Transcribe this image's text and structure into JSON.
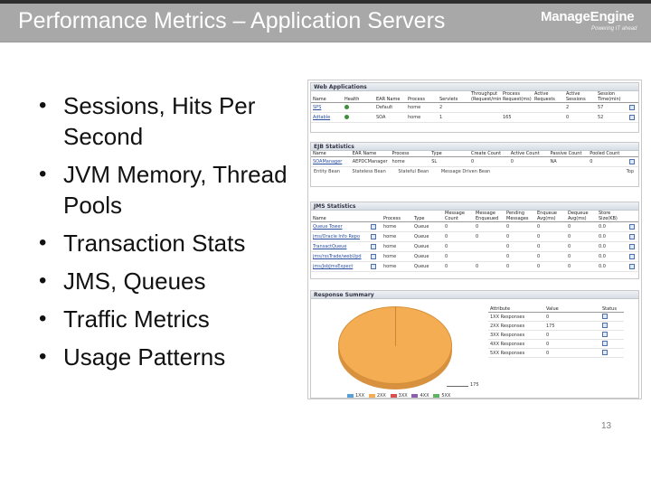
{
  "header": {
    "title": "Performance Metrics – Application Servers",
    "logo_name": "ManageEngine",
    "logo_tagline": "Powering IT ahead"
  },
  "bullets": [
    "Sessions, Hits Per Second",
    "JVM Memory, Thread Pools",
    "Transaction Stats",
    "JMS, Queues",
    "Traffic Metrics",
    "Usage Patterns"
  ],
  "screenshot": {
    "web_apps": {
      "title": "Web Applications",
      "headers": [
        "Name",
        "Health",
        "EAR Name",
        "Process",
        "Servlets",
        "Throughput (Request/min)",
        "Process Request(ms)",
        "Active Requests",
        "Active Sessions",
        "Session Time(min)",
        ""
      ],
      "rows": [
        [
          "SPS",
          "",
          "Default",
          "home",
          "2",
          "",
          "",
          "",
          "2",
          "57",
          ""
        ],
        [
          "Adtable",
          "",
          "SOA",
          "home",
          "1",
          "",
          "165",
          "",
          "0",
          "52",
          ""
        ]
      ]
    },
    "ejb": {
      "title": "EJB Statistics",
      "headers": [
        "Name",
        "EAR Name",
        "Process",
        "Type",
        "Create Count",
        "Active Count",
        "Passive Count",
        "Pooled Count",
        ""
      ],
      "rows": [
        [
          "SOAManager",
          "AEPDCManager",
          "home",
          "SL",
          "0",
          "0",
          "NA",
          "0",
          ""
        ]
      ],
      "legend": [
        "Entity Bean",
        "Stateless Bean",
        "Stateful Bean",
        "Message Driven Bean"
      ],
      "footer": "Top"
    },
    "jms": {
      "title": "JMS Statistics",
      "headers": [
        "Name",
        "",
        "Process",
        "Type",
        "Message Count",
        "Message Enqueued",
        "Pending Messages",
        "Enqueue Avg(ms)",
        "Dequeue Avg(ms)",
        "Store Size(KB)",
        ""
      ],
      "rows": [
        [
          "Queue Tower",
          "",
          "home",
          "Queue",
          "0",
          "0",
          "0",
          "0",
          "0",
          "0.0",
          ""
        ],
        [
          "jms/Oracle Info Repo",
          "",
          "home",
          "Queue",
          "0",
          "0",
          "0",
          "0",
          "0",
          "0.0",
          ""
        ],
        [
          "TransactQueue",
          "",
          "home",
          "Queue",
          "0",
          "",
          "0",
          "0",
          "0",
          "0.0",
          ""
        ],
        [
          "jms/rssTrade/webUpd",
          "",
          "home",
          "Queue",
          "0",
          "",
          "0",
          "0",
          "0",
          "0.0",
          ""
        ],
        [
          "jms/JobJmsExpect",
          "",
          "home",
          "Queue",
          "0",
          "0",
          "0",
          "0",
          "0",
          "0.0",
          ""
        ]
      ]
    },
    "response": {
      "title": "Response Summary",
      "pie_label": "175",
      "table_headers": [
        "Attribute",
        "Value",
        "Status"
      ],
      "rows": [
        [
          "1XX Responses",
          "0",
          ""
        ],
        [
          "2XX Responses",
          "175",
          ""
        ],
        [
          "3XX Responses",
          "0",
          ""
        ],
        [
          "4XX Responses",
          "0",
          ""
        ],
        [
          "5XX Responses",
          "0",
          ""
        ]
      ],
      "legend": [
        "1XX",
        "2XX",
        "3XX",
        "4XX",
        "5XX"
      ],
      "legend_colors": [
        "#5aa0d8",
        "#f4ad52",
        "#d94f4f",
        "#8b5fb0",
        "#5fb55f"
      ]
    }
  },
  "page_number": "13"
}
